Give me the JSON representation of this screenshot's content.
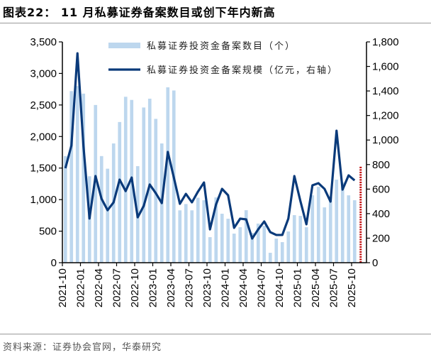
{
  "title": "图表22： 11 月私募证券备案数目或创下年内新高",
  "source": "资料来源：证券协会官网，华泰研究",
  "chart_data": {
    "type": "bar+line",
    "categories": [
      "2021-10",
      "2021-11",
      "2021-12",
      "2022-01",
      "2022-02",
      "2022-03",
      "2022-04",
      "2022-05",
      "2022-06",
      "2022-07",
      "2022-08",
      "2022-09",
      "2022-10",
      "2022-11",
      "2022-12",
      "2023-01",
      "2023-02",
      "2023-03",
      "2023-04",
      "2023-05",
      "2023-06",
      "2023-07",
      "2023-08",
      "2023-09",
      "2023-10",
      "2023-11",
      "2023-12",
      "2024-01",
      "2024-02",
      "2024-03",
      "2024-04",
      "2024-05",
      "2024-06",
      "2024-07",
      "2024-08",
      "2024-09",
      "2024-10",
      "2024-11",
      "2024-12",
      "2025-01",
      "2025-02",
      "2025-03",
      "2025-04",
      "2025-05",
      "2025-06",
      "2025-07",
      "2025-08",
      "2025-09",
      "2025-10",
      "2025-11"
    ],
    "xtick_labels": [
      "2021-10",
      "2022-01",
      "2022-04",
      "2022-07",
      "2022-10",
      "2023-01",
      "2023-04",
      "2023-07",
      "2023-10",
      "2024-01",
      "2024-04",
      "2024-07",
      "2024-10",
      "2025-01",
      "2025-04",
      "2025-07",
      "2025-10"
    ],
    "series": [
      {
        "name": "私募证券投资金备案数目（个）",
        "type": "bar",
        "axis": "left",
        "color": "#bdd7ee",
        "values": [
          1690,
          2720,
          2800,
          2680,
          1370,
          2500,
          1690,
          1490,
          1890,
          2230,
          2630,
          2580,
          1530,
          2460,
          2600,
          2280,
          1890,
          2780,
          2730,
          830,
          930,
          830,
          1030,
          990,
          405,
          1035,
          776,
          697,
          461,
          562,
          832,
          472,
          620,
          585,
          157,
          382,
          326,
          495,
          754,
          742,
          562,
          1068,
          1203,
          877,
          1046,
          1316,
          1271,
          1068,
          990,
          null
        ]
      },
      {
        "name": "私募证券投资金备案规模（亿元，右轴）",
        "type": "line",
        "axis": "right",
        "color": "#0a3a7a",
        "values": [
          770,
          955,
          1707,
          950,
          360,
          706,
          521,
          428,
          492,
          677,
          584,
          694,
          370,
          463,
          637,
          567,
          486,
          903,
          694,
          480,
          561,
          492,
          579,
          654,
          272,
          475,
          602,
          550,
          284,
          359,
          353,
          197,
          272,
          336,
          249,
          226,
          226,
          359,
          706,
          503,
          313,
          631,
          648,
          602,
          498,
          1076,
          596,
          712,
          671,
          null
        ]
      },
      {
        "type": "bar",
        "axis": "left",
        "color": "#c00000",
        "style": "dotted",
        "values": [
          null,
          null,
          null,
          null,
          null,
          null,
          null,
          null,
          null,
          null,
          null,
          null,
          null,
          null,
          null,
          null,
          null,
          null,
          null,
          null,
          null,
          null,
          null,
          null,
          null,
          null,
          null,
          null,
          null,
          null,
          null,
          null,
          null,
          null,
          null,
          null,
          null,
          null,
          null,
          null,
          null,
          null,
          null,
          null,
          null,
          null,
          null,
          null,
          null,
          1520
        ]
      }
    ],
    "left_axis": {
      "range": [
        0,
        3500
      ],
      "ticks": [
        "0",
        "500",
        "1,000",
        "1,500",
        "2,000",
        "2,500",
        "3,000",
        "3,500"
      ]
    },
    "right_axis": {
      "range": [
        0,
        1800
      ],
      "ticks": [
        "0",
        "200",
        "400",
        "600",
        "800",
        "1,000",
        "1,200",
        "1,400",
        "1,600",
        "1,800"
      ]
    },
    "grid": false,
    "legend_placement": "top-center"
  }
}
